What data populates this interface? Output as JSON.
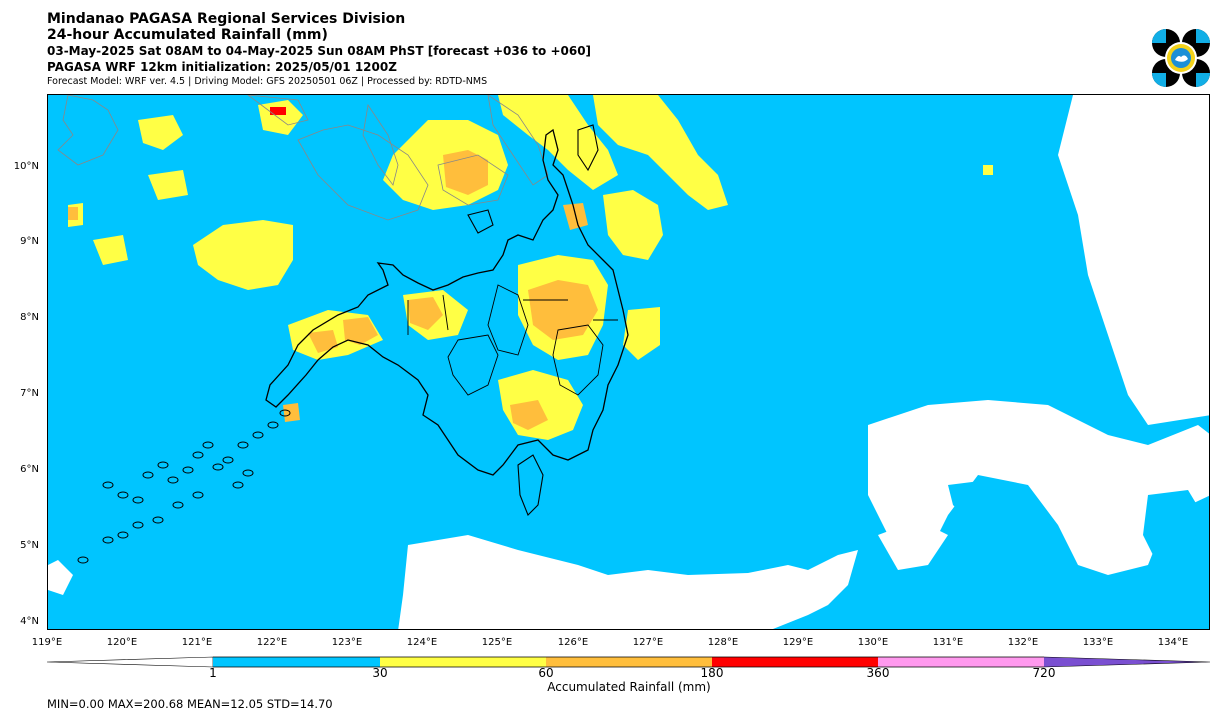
{
  "header": {
    "title": "Mindanao PAGASA Regional Services Division",
    "subtitle": "24-hour Accumulated Rainfall (mm)",
    "period": "03-May-2025 Sat 08AM to 04-May-2025 Sun 08AM PhST [forecast +036 to +060]",
    "init": "PAGASA WRF 12km initialization: 2025/05/01 1200Z",
    "model_info": "Forecast Model: WRF ver. 4.5 | Driving Model: GFS 20250501 06Z | Processed by: RDTD-NMS"
  },
  "map": {
    "lat_labels": [
      "10°N",
      "9°N",
      "8°N",
      "7°N",
      "6°N",
      "5°N",
      "4°N"
    ],
    "lon_labels": [
      "119°E",
      "120°E",
      "121°E",
      "122°E",
      "123°E",
      "124°E",
      "125°E",
      "126°E",
      "127°E",
      "128°E",
      "129°E",
      "130°E",
      "131°E",
      "132°E",
      "133°E",
      "134°E"
    ],
    "extent": {
      "lon_min": 119.0,
      "lon_max": 134.5,
      "lat_min": 3.9,
      "lat_max": 11.0
    },
    "colors": {
      "no_rain": "#ffffff",
      "1-30": "#00c5ff",
      "30-60": "#ffff45",
      "60-180": "#ffbe3c",
      "180-360": "#ff0000",
      "360-720": "#ff99ee",
      "720+": "#7a4fd1",
      "coast": "#000000",
      "foreign_coast": "#888888"
    }
  },
  "colorbar": {
    "ticks": [
      "1",
      "30",
      "60",
      "180",
      "360",
      "720"
    ],
    "label": "Accumulated Rainfall (mm)"
  },
  "stats": "MIN=0.00   MAX=200.68   MEAN=12.05   STD=14.70"
}
